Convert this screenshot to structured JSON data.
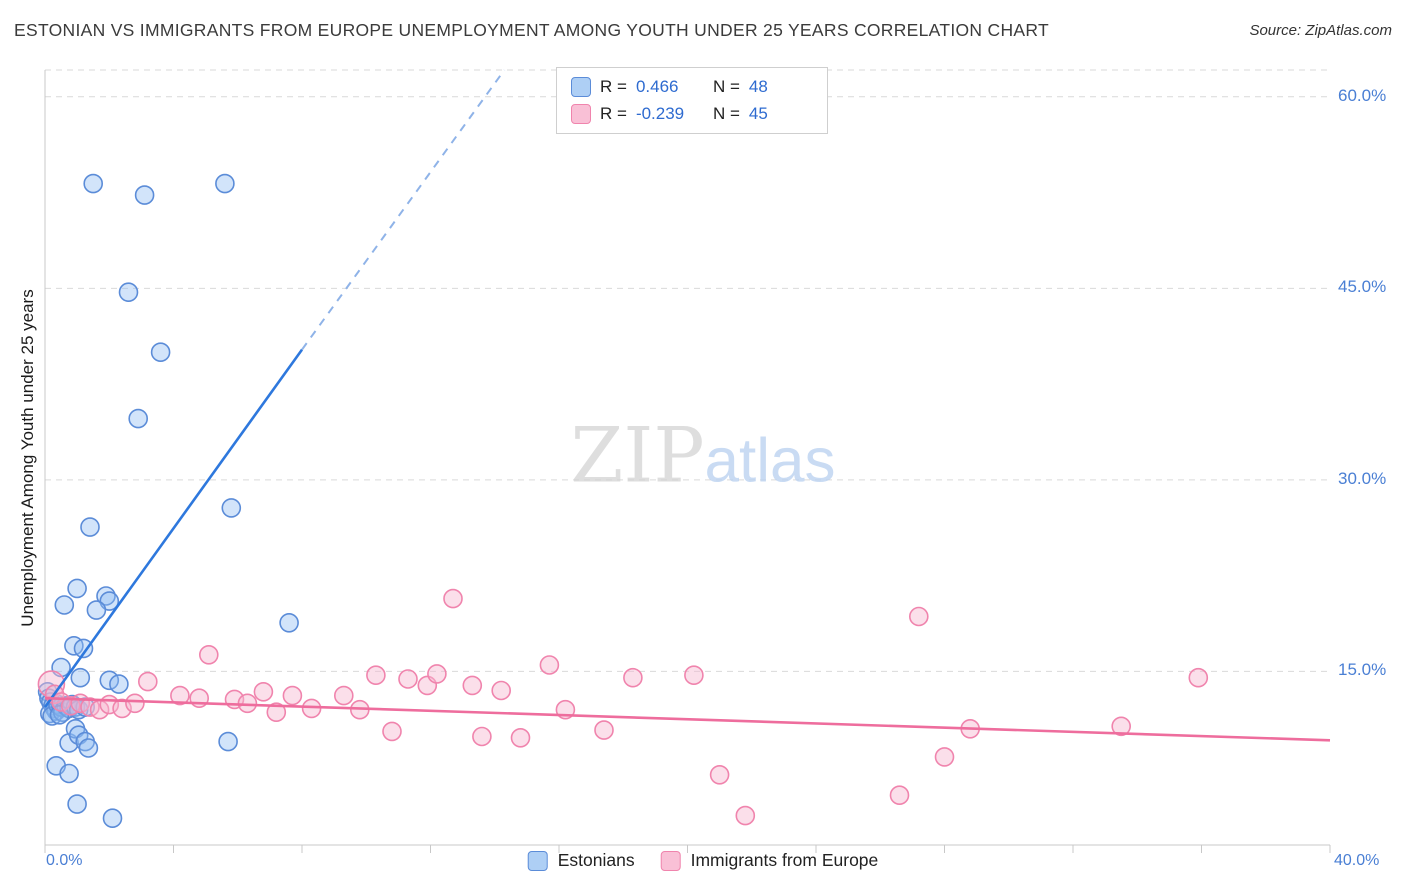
{
  "header": {
    "title": "ESTONIAN VS IMMIGRANTS FROM EUROPE UNEMPLOYMENT AMONG YOUTH UNDER 25 YEARS CORRELATION CHART",
    "source": "Source: ZipAtlas.com"
  },
  "stats_legend": {
    "rows": [
      {
        "series": "Estonians",
        "r_label": "R =",
        "r_value": "0.466",
        "n_label": "N =",
        "n_value": "48"
      },
      {
        "series": "Immigrants from Europe",
        "r_label": "R =",
        "r_value": "-0.239",
        "n_label": "N =",
        "n_value": "45"
      }
    ]
  },
  "watermark": {
    "part1": "ZIP",
    "part2": "atlas"
  },
  "axes": {
    "ylabel": "Unemployment Among Youth under 25 years",
    "x_min_label": "0.0%",
    "x_max_label": "40.0%"
  },
  "bottom_legend": {
    "items": [
      {
        "label": "Estonians"
      },
      {
        "label": "Immigrants from Europe"
      }
    ]
  },
  "colors": {
    "estonian_fill": "#8fbcf2",
    "estonian_stroke": "#5b8cd8",
    "estonian_trend": "#2e78dd",
    "estonian_trend_dash": "#8fb3e8",
    "immigrant_fill": "#f7b9d0",
    "immigrant_stroke": "#f084ad",
    "immigrant_trend": "#ee6d9d",
    "tick_label": "#4a7fd4",
    "gridline": "#d9d9d9"
  },
  "chart_data": {
    "type": "scatter",
    "title": "ESTONIAN VS IMMIGRANTS FROM EUROPE UNEMPLOYMENT AMONG YOUTH UNDER 25 YEARS CORRELATION CHART",
    "xlabel": "",
    "ylabel": "Unemployment Among Youth under 25 years",
    "x_axis": {
      "min": 0,
      "max": 40,
      "tick_step": 4,
      "min_label": "0.0%",
      "max_label": "40.0%"
    },
    "y_axis": {
      "min": 1.4,
      "max": 62.1,
      "ticks": [
        {
          "value": 60,
          "label": "60.0%"
        },
        {
          "value": 45,
          "label": "45.0%"
        },
        {
          "value": 30,
          "label": "30.0%"
        },
        {
          "value": 15,
          "label": "15.0%"
        }
      ]
    },
    "series": [
      {
        "name": "Estonians",
        "r": 0.466,
        "n": 48,
        "fill": "#8fbcf2",
        "stroke": "#5b8cd8",
        "fill_opacity": 0.4,
        "marker_radius": 9,
        "points": [
          [
            1.5,
            53.2
          ],
          [
            3.1,
            52.3
          ],
          [
            5.6,
            53.2
          ],
          [
            2.6,
            44.7
          ],
          [
            3.6,
            40.0
          ],
          [
            2.9,
            34.8
          ],
          [
            5.8,
            27.8
          ],
          [
            1.4,
            26.3
          ],
          [
            0.6,
            20.2
          ],
          [
            1.0,
            21.5
          ],
          [
            1.9,
            20.9
          ],
          [
            2.0,
            20.5
          ],
          [
            1.6,
            19.8
          ],
          [
            7.6,
            18.8
          ],
          [
            0.9,
            17.0
          ],
          [
            1.2,
            16.8
          ],
          [
            0.5,
            15.3
          ],
          [
            1.1,
            14.5
          ],
          [
            2.0,
            14.3
          ],
          [
            2.3,
            14.0
          ],
          [
            0.08,
            13.4
          ],
          [
            0.12,
            12.9
          ],
          [
            0.18,
            12.6
          ],
          [
            0.25,
            12.3
          ],
          [
            0.3,
            12.1
          ],
          [
            0.35,
            11.9
          ],
          [
            0.15,
            11.7
          ],
          [
            0.22,
            11.5
          ],
          [
            0.4,
            12.4
          ],
          [
            0.5,
            12.2
          ],
          [
            0.55,
            11.8
          ],
          [
            0.65,
            12.3
          ],
          [
            0.75,
            12.1
          ],
          [
            0.85,
            12.4
          ],
          [
            0.95,
            12.2
          ],
          [
            1.05,
            12.0
          ],
          [
            1.25,
            12.2
          ],
          [
            0.45,
            11.6
          ],
          [
            0.35,
            7.6
          ],
          [
            0.75,
            9.4
          ],
          [
            0.75,
            7.0
          ],
          [
            0.95,
            10.5
          ],
          [
            1.05,
            10.0
          ],
          [
            1.25,
            9.5
          ],
          [
            1.35,
            9.0
          ],
          [
            5.7,
            9.5
          ],
          [
            1.0,
            4.6
          ],
          [
            2.1,
            3.5
          ]
        ]
      },
      {
        "name": "Immigrants from Europe",
        "r": -0.239,
        "n": 45,
        "fill": "#f7b9d0",
        "stroke": "#f084ad",
        "fill_opacity": 0.45,
        "marker_radius": 9,
        "points": [
          [
            0.2,
            14.0,
            13
          ],
          [
            0.3,
            13.2
          ],
          [
            0.5,
            12.6
          ],
          [
            0.8,
            12.3
          ],
          [
            1.1,
            12.5
          ],
          [
            1.4,
            12.2
          ],
          [
            1.7,
            12.0
          ],
          [
            2.0,
            12.4
          ],
          [
            2.4,
            12.1
          ],
          [
            2.8,
            12.5
          ],
          [
            3.2,
            14.2
          ],
          [
            4.2,
            13.1
          ],
          [
            4.8,
            12.9
          ],
          [
            5.1,
            16.3
          ],
          [
            5.9,
            12.8
          ],
          [
            6.3,
            12.5
          ],
          [
            6.8,
            13.4
          ],
          [
            7.2,
            11.8
          ],
          [
            7.7,
            13.1
          ],
          [
            8.3,
            12.1
          ],
          [
            9.3,
            13.1
          ],
          [
            9.8,
            12.0
          ],
          [
            10.3,
            14.7
          ],
          [
            10.8,
            10.3
          ],
          [
            11.3,
            14.4
          ],
          [
            11.9,
            13.9
          ],
          [
            12.2,
            14.8
          ],
          [
            12.7,
            20.7
          ],
          [
            13.3,
            13.9
          ],
          [
            13.6,
            9.9
          ],
          [
            14.2,
            13.5
          ],
          [
            14.8,
            9.8
          ],
          [
            15.7,
            15.5
          ],
          [
            16.2,
            12.0
          ],
          [
            17.4,
            10.4
          ],
          [
            18.3,
            14.5
          ],
          [
            20.2,
            14.7
          ],
          [
            21.0,
            6.9
          ],
          [
            21.8,
            3.7
          ],
          [
            26.6,
            5.3
          ],
          [
            27.2,
            19.3
          ],
          [
            28.0,
            8.3
          ],
          [
            28.8,
            10.5
          ],
          [
            33.5,
            10.7
          ],
          [
            35.9,
            14.5
          ]
        ]
      }
    ],
    "trendlines": [
      {
        "series": "Estonians",
        "color": "#2e78dd",
        "width": 2.6,
        "solid": [
          [
            0,
            12.2
          ],
          [
            8.0,
            40.2
          ]
        ],
        "dashed": [
          [
            8.0,
            40.2
          ],
          [
            14.3,
            62.1
          ]
        ],
        "dash_color": "#8fb3e8"
      },
      {
        "series": "Immigrants from Europe",
        "color": "#ee6d9d",
        "width": 2.6,
        "solid": [
          [
            0,
            12.9
          ],
          [
            40,
            9.6
          ]
        ]
      }
    ],
    "legend_position": "bottom",
    "grid": true
  }
}
